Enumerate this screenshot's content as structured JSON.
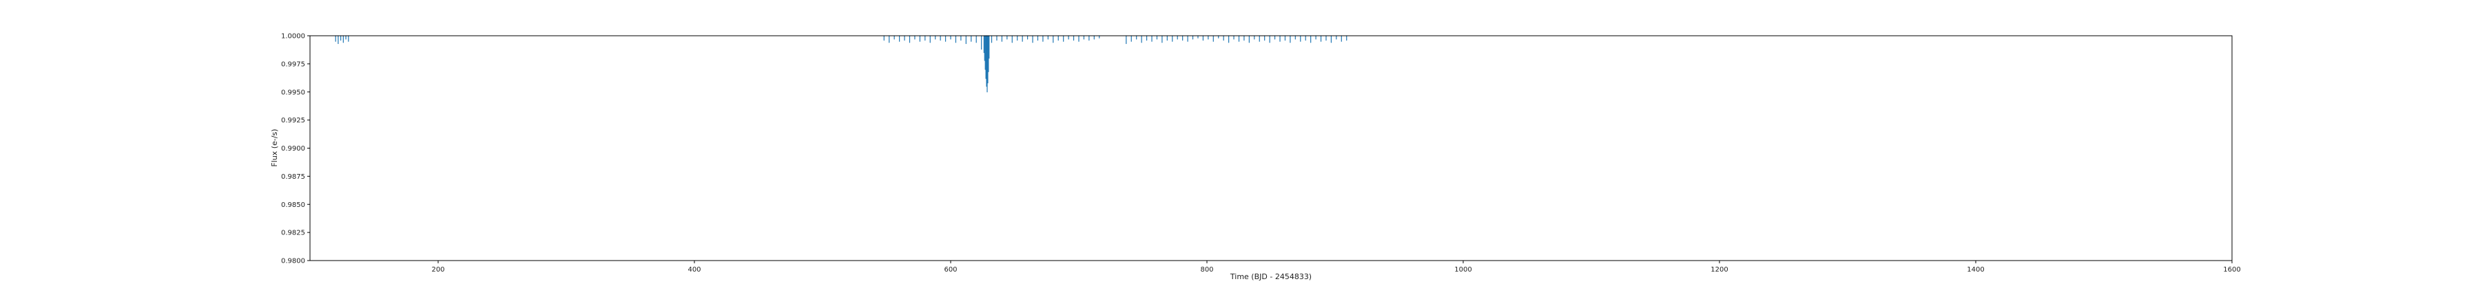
{
  "chart_data": {
    "type": "scatter",
    "title": "",
    "xlabel": "Time (BJD - 2454833)",
    "ylabel": "Flux (e-/s)",
    "xlim": [
      100,
      1600
    ],
    "ylim": [
      0.98,
      1.0
    ],
    "xticks": [
      200,
      400,
      600,
      800,
      1000,
      1200,
      1400,
      1600
    ],
    "yticks": [
      0.98,
      0.9825,
      0.985,
      0.9875,
      0.99,
      0.9925,
      0.995,
      0.9975,
      1.0
    ],
    "xtick_labels": [
      "200",
      "400",
      "600",
      "800",
      "1000",
      "1200",
      "1400",
      "1600"
    ],
    "ytick_labels": [
      "0.9800",
      "0.9825",
      "0.9850",
      "0.9875",
      "0.9900",
      "0.9925",
      "0.9950",
      "0.9975",
      "1.0000"
    ],
    "grid": false,
    "marker_color": "#1f77b4",
    "segments": [
      {
        "x": [
          120,
          122,
          124,
          126,
          128,
          130
        ],
        "y": [
          0.9995,
          0.9993,
          0.9996,
          0.9994,
          0.9997,
          0.9995
        ]
      },
      {
        "x": [
          548,
          552,
          556,
          560,
          564,
          568,
          572,
          576,
          580,
          584,
          588,
          592,
          596,
          600,
          604,
          608,
          612,
          616,
          620,
          624,
          628,
          632,
          636,
          640,
          644,
          648,
          652,
          656,
          660,
          664,
          668,
          672,
          676,
          680,
          684,
          688,
          692,
          696,
          700,
          704,
          708,
          712,
          716
        ],
        "y": [
          0.9996,
          0.9994,
          0.9997,
          0.9995,
          0.9996,
          0.9994,
          0.9997,
          0.9995,
          0.9996,
          0.9994,
          0.9997,
          0.9996,
          0.9995,
          0.9997,
          0.9994,
          0.9996,
          0.9993,
          0.9995,
          0.9994,
          0.9988,
          0.9982,
          0.9994,
          0.9996,
          0.9995,
          0.9997,
          0.9994,
          0.9996,
          0.9995,
          0.9997,
          0.9994,
          0.9996,
          0.9995,
          0.9997,
          0.9994,
          0.9996,
          0.9995,
          0.9997,
          0.9996,
          0.9995,
          0.9997,
          0.9996,
          0.9997,
          0.9998
        ]
      },
      {
        "x": [
          626,
          626.5,
          627,
          627.5,
          628,
          628.5,
          629,
          629.5,
          630
        ],
        "y": [
          0.9985,
          0.9978,
          0.997,
          0.9962,
          0.9955,
          0.995,
          0.9958,
          0.9968,
          0.998
        ]
      },
      {
        "x": [
          737,
          741,
          745,
          749,
          753,
          757,
          761,
          765,
          769,
          773,
          777,
          781,
          785,
          789,
          793,
          797,
          801,
          805,
          809,
          813,
          817,
          821,
          825,
          829,
          833,
          837,
          841,
          845,
          849,
          853,
          857,
          861,
          865,
          869,
          873,
          877,
          881,
          885,
          889,
          893,
          897,
          901,
          905,
          909
        ],
        "y": [
          0.9993,
          0.9995,
          0.9997,
          0.9994,
          0.9996,
          0.9995,
          0.9997,
          0.9994,
          0.9996,
          0.9995,
          0.9997,
          0.9996,
          0.9995,
          0.9997,
          0.9998,
          0.9996,
          0.9997,
          0.9995,
          0.9998,
          0.9996,
          0.9994,
          0.9997,
          0.9995,
          0.9996,
          0.9994,
          0.9997,
          0.9995,
          0.9996,
          0.9994,
          0.9997,
          0.9995,
          0.9996,
          0.9994,
          0.9997,
          0.9995,
          0.9996,
          0.9994,
          0.9997,
          0.9995,
          0.9996,
          0.9994,
          0.9997,
          0.9995,
          0.9996
        ]
      }
    ]
  }
}
